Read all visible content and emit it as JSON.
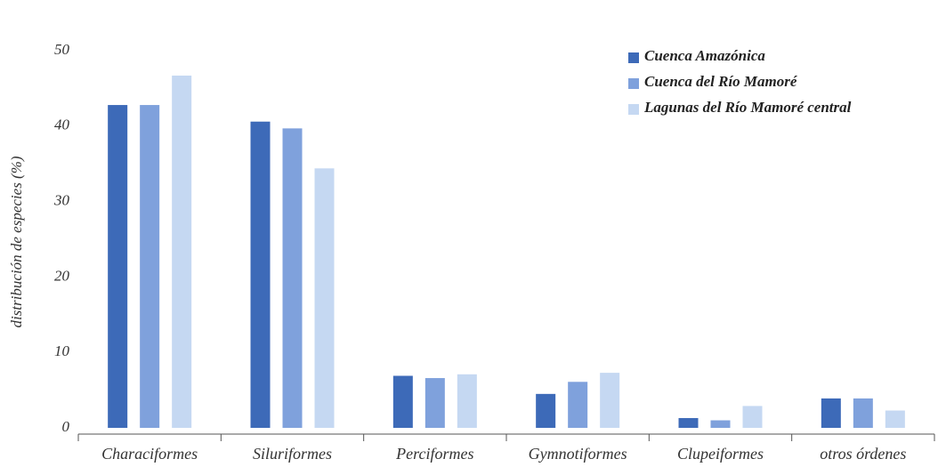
{
  "chart_data": {
    "type": "bar",
    "y_label": "distribución de especies (%)",
    "categories": [
      "Characiformes",
      "Siluriformes",
      "Perciformes",
      "Gymnotiformes",
      "Clupeiformes",
      "otros órdenes"
    ],
    "series": [
      {
        "name": "Cuenca Amazónica",
        "color": "#3d6ab8",
        "values": [
          42.8,
          40.6,
          6.9,
          4.5,
          1.3,
          3.9
        ]
      },
      {
        "name": "Cuenca del Río Mamoré",
        "color": "#7fa1dc",
        "values": [
          42.8,
          39.7,
          6.6,
          6.1,
          1.0,
          3.9
        ]
      },
      {
        "name": "Lagunas del Río Mamoré central",
        "color": "#c5d8f2",
        "values": [
          46.7,
          34.4,
          7.1,
          7.3,
          2.9,
          2.3
        ]
      }
    ],
    "ylim": [
      0,
      50
    ],
    "yticks": [
      0,
      10,
      20,
      30,
      40,
      50
    ],
    "legend": "upper-right"
  }
}
